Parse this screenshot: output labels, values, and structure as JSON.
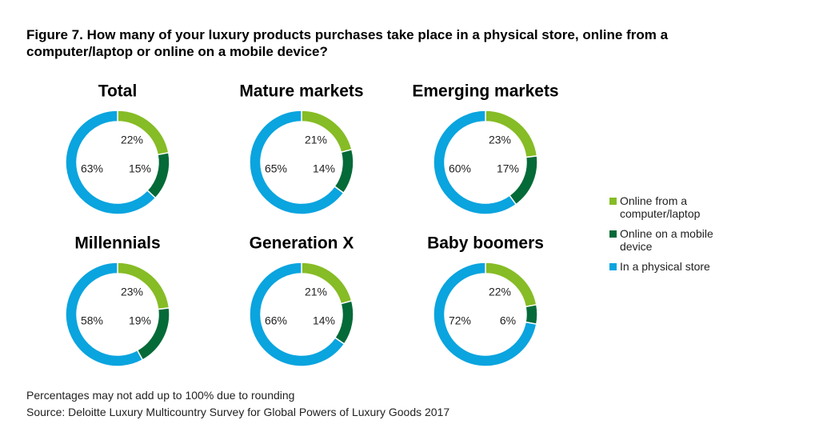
{
  "title": "Figure 7. How many of your luxury products purchases take place in a physical store, online from a computer/laptop or online on a mobile device?",
  "chart_data": [
    {
      "type": "pie",
      "title": "Total",
      "values": [
        22,
        15,
        63
      ],
      "value_labels": [
        "22%",
        "15%",
        "63%"
      ]
    },
    {
      "type": "pie",
      "title": "Mature markets",
      "values": [
        21,
        14,
        65
      ],
      "value_labels": [
        "21%",
        "14%",
        "65%"
      ]
    },
    {
      "type": "pie",
      "title": "Emerging markets",
      "values": [
        23,
        17,
        60
      ],
      "value_labels": [
        "23%",
        "17%",
        "60%"
      ]
    },
    {
      "type": "pie",
      "title": "Millennials",
      "values": [
        23,
        19,
        58
      ],
      "value_labels": [
        "23%",
        "19%",
        "58%"
      ]
    },
    {
      "type": "pie",
      "title": "Generation X",
      "values": [
        21,
        14,
        66
      ],
      "value_labels": [
        "21%",
        "14%",
        "66%"
      ]
    },
    {
      "type": "pie",
      "title": "Baby boomers",
      "values": [
        22,
        6,
        72
      ],
      "value_labels": [
        "22%",
        "6%",
        "72%"
      ]
    }
  ],
  "legend": {
    "labels": [
      "Online from a computer/laptop",
      "Online on a mobile device",
      "In a physical store"
    ],
    "colors": [
      "#86bc25",
      "#046a38",
      "#0aa4df"
    ]
  },
  "notes": [
    "Percentages may not add up to 100% due to rounding",
    "Source: Deloitte Luxury Multicountry Survey for Global Powers of Luxury Goods 2017"
  ]
}
